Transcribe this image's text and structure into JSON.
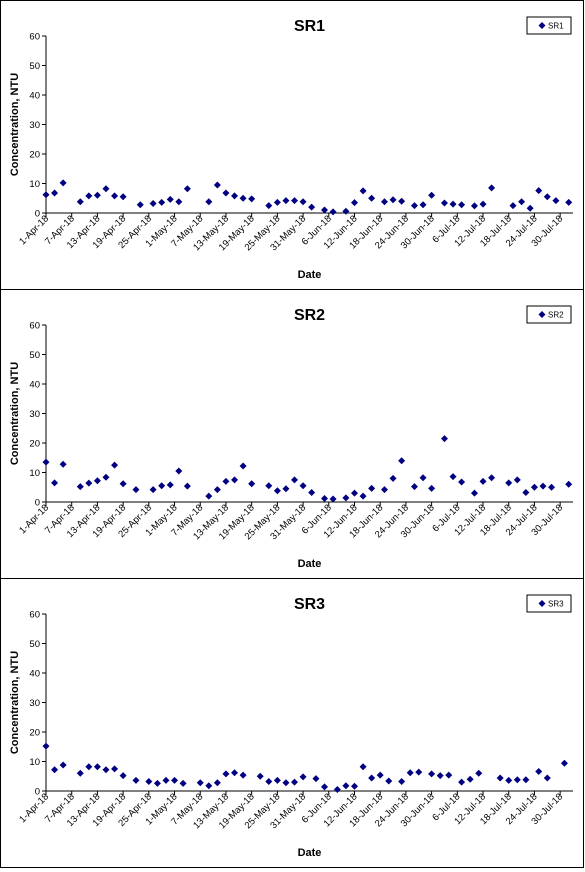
{
  "chart_data": [
    {
      "type": "scatter",
      "title": "SR1",
      "xlabel": "Date",
      "ylabel": "Concentration, NTU",
      "ylim": [
        0,
        60
      ],
      "yticks": [
        0,
        10,
        20,
        30,
        40,
        50,
        60
      ],
      "xticks": [
        "1-Apr-18",
        "7-Apr-18",
        "13-Apr-18",
        "19-Apr-18",
        "25-Apr-18",
        "1-May-18",
        "7-May-18",
        "13-May-18",
        "19-May-18",
        "25-May-18",
        "31-May-18",
        "6-Jun-18",
        "12-Jun-18",
        "18-Jun-18",
        "24-Jun-18",
        "30-Jun-18",
        "6-Jul-18",
        "12-Jul-18",
        "18-Jul-18",
        "24-Jul-18",
        "30-Jul-18"
      ],
      "grid": false,
      "legend_position": "top-right",
      "series": [
        {
          "name": "SR1",
          "color": "#000080",
          "points": [
            [
              "2018-04-01",
              6.2
            ],
            [
              "2018-04-03",
              6.8
            ],
            [
              "2018-04-05",
              10.2
            ],
            [
              "2018-04-09",
              3.8
            ],
            [
              "2018-04-11",
              5.8
            ],
            [
              "2018-04-13",
              6.0
            ],
            [
              "2018-04-15",
              8.2
            ],
            [
              "2018-04-17",
              5.8
            ],
            [
              "2018-04-19",
              5.5
            ],
            [
              "2018-04-23",
              2.8
            ],
            [
              "2018-04-26",
              3.2
            ],
            [
              "2018-04-28",
              3.6
            ],
            [
              "2018-04-30",
              4.6
            ],
            [
              "2018-05-02",
              3.8
            ],
            [
              "2018-05-04",
              8.2
            ],
            [
              "2018-05-09",
              3.8
            ],
            [
              "2018-05-11",
              9.5
            ],
            [
              "2018-05-13",
              6.8
            ],
            [
              "2018-05-15",
              5.8
            ],
            [
              "2018-05-17",
              5.0
            ],
            [
              "2018-05-19",
              4.8
            ],
            [
              "2018-05-23",
              2.5
            ],
            [
              "2018-05-25",
              3.6
            ],
            [
              "2018-05-27",
              4.2
            ],
            [
              "2018-05-29",
              4.2
            ],
            [
              "2018-05-31",
              3.8
            ],
            [
              "2018-06-02",
              2.0
            ],
            [
              "2018-06-05",
              1.0
            ],
            [
              "2018-06-07",
              0.4
            ],
            [
              "2018-06-10",
              0.6
            ],
            [
              "2018-06-12",
              3.5
            ],
            [
              "2018-06-14",
              7.5
            ],
            [
              "2018-06-16",
              5.0
            ],
            [
              "2018-06-19",
              3.8
            ],
            [
              "2018-06-21",
              4.5
            ],
            [
              "2018-06-23",
              4.0
            ],
            [
              "2018-06-26",
              2.5
            ],
            [
              "2018-06-28",
              2.8
            ],
            [
              "2018-06-30",
              6.0
            ],
            [
              "2018-07-03",
              3.4
            ],
            [
              "2018-07-05",
              3.0
            ],
            [
              "2018-07-07",
              2.8
            ],
            [
              "2018-07-10",
              2.4
            ],
            [
              "2018-07-12",
              3.0
            ],
            [
              "2018-07-14",
              8.5
            ],
            [
              "2018-07-19",
              2.5
            ],
            [
              "2018-07-21",
              3.8
            ],
            [
              "2018-07-23",
              1.6
            ],
            [
              "2018-07-25",
              7.6
            ],
            [
              "2018-07-27",
              5.5
            ],
            [
              "2018-07-29",
              4.2
            ],
            [
              "2018-08-01",
              3.6
            ]
          ]
        }
      ]
    },
    {
      "type": "scatter",
      "title": "SR2",
      "xlabel": "Date",
      "ylabel": "Concentration, NTU",
      "ylim": [
        0,
        60
      ],
      "yticks": [
        0,
        10,
        20,
        30,
        40,
        50,
        60
      ],
      "xticks": [
        "1-Apr-18",
        "7-Apr-18",
        "13-Apr-18",
        "19-Apr-18",
        "25-Apr-18",
        "1-May-18",
        "7-May-18",
        "13-May-18",
        "19-May-18",
        "25-May-18",
        "31-May-18",
        "6-Jun-18",
        "12-Jun-18",
        "18-Jun-18",
        "24-Jun-18",
        "30-Jun-18",
        "6-Jul-18",
        "12-Jul-18",
        "18-Jul-18",
        "24-Jul-18",
        "30-Jul-18"
      ],
      "grid": false,
      "legend_position": "top-right",
      "series": [
        {
          "name": "SR2",
          "color": "#000080",
          "points": [
            [
              "2018-04-01",
              13.5
            ],
            [
              "2018-04-03",
              6.5
            ],
            [
              "2018-04-05",
              12.8
            ],
            [
              "2018-04-09",
              5.2
            ],
            [
              "2018-04-11",
              6.4
            ],
            [
              "2018-04-13",
              7.2
            ],
            [
              "2018-04-15",
              8.4
            ],
            [
              "2018-04-17",
              12.5
            ],
            [
              "2018-04-19",
              6.2
            ],
            [
              "2018-04-22",
              4.2
            ],
            [
              "2018-04-26",
              4.2
            ],
            [
              "2018-04-28",
              5.5
            ],
            [
              "2018-04-30",
              5.8
            ],
            [
              "2018-05-02",
              10.5
            ],
            [
              "2018-05-04",
              5.4
            ],
            [
              "2018-05-09",
              2.0
            ],
            [
              "2018-05-11",
              4.2
            ],
            [
              "2018-05-13",
              7.0
            ],
            [
              "2018-05-15",
              7.5
            ],
            [
              "2018-05-17",
              12.2
            ],
            [
              "2018-05-19",
              6.2
            ],
            [
              "2018-05-23",
              5.5
            ],
            [
              "2018-05-25",
              3.8
            ],
            [
              "2018-05-27",
              4.5
            ],
            [
              "2018-05-29",
              7.5
            ],
            [
              "2018-05-31",
              5.5
            ],
            [
              "2018-06-02",
              3.2
            ],
            [
              "2018-06-05",
              1.2
            ],
            [
              "2018-06-07",
              1.0
            ],
            [
              "2018-06-10",
              1.4
            ],
            [
              "2018-06-12",
              3.0
            ],
            [
              "2018-06-14",
              2.0
            ],
            [
              "2018-06-16",
              4.6
            ],
            [
              "2018-06-19",
              4.2
            ],
            [
              "2018-06-21",
              8.0
            ],
            [
              "2018-06-23",
              14.0
            ],
            [
              "2018-06-26",
              5.2
            ],
            [
              "2018-06-28",
              8.2
            ],
            [
              "2018-06-30",
              4.6
            ],
            [
              "2018-07-03",
              21.5
            ],
            [
              "2018-07-05",
              8.6
            ],
            [
              "2018-07-07",
              6.8
            ],
            [
              "2018-07-10",
              3.0
            ],
            [
              "2018-07-12",
              7.0
            ],
            [
              "2018-07-14",
              8.2
            ],
            [
              "2018-07-18",
              6.5
            ],
            [
              "2018-07-20",
              7.5
            ],
            [
              "2018-07-22",
              3.2
            ],
            [
              "2018-07-24",
              5.0
            ],
            [
              "2018-07-26",
              5.4
            ],
            [
              "2018-07-28",
              5.0
            ],
            [
              "2018-08-01",
              6.0
            ]
          ]
        }
      ]
    },
    {
      "type": "scatter",
      "title": "SR3",
      "xlabel": "Date",
      "ylabel": "Concentration, NTU",
      "ylim": [
        0,
        60
      ],
      "yticks": [
        0,
        10,
        20,
        30,
        40,
        50,
        60
      ],
      "xticks": [
        "1-Apr-18",
        "7-Apr-18",
        "13-Apr-18",
        "19-Apr-18",
        "25-Apr-18",
        "1-May-18",
        "7-May-18",
        "13-May-18",
        "19-May-18",
        "25-May-18",
        "31-May-18",
        "6-Jun-18",
        "12-Jun-18",
        "18-Jun-18",
        "24-Jun-18",
        "30-Jun-18",
        "6-Jul-18",
        "12-Jul-18",
        "18-Jul-18",
        "24-Jul-18",
        "30-Jul-18"
      ],
      "grid": false,
      "legend_position": "top-right",
      "series": [
        {
          "name": "SR3",
          "color": "#000080",
          "points": [
            [
              "2018-04-01",
              15.2
            ],
            [
              "2018-04-03",
              7.2
            ],
            [
              "2018-04-05",
              8.8
            ],
            [
              "2018-04-09",
              6.0
            ],
            [
              "2018-04-11",
              8.2
            ],
            [
              "2018-04-13",
              8.2
            ],
            [
              "2018-04-15",
              7.2
            ],
            [
              "2018-04-17",
              7.5
            ],
            [
              "2018-04-19",
              5.2
            ],
            [
              "2018-04-22",
              3.6
            ],
            [
              "2018-04-25",
              3.2
            ],
            [
              "2018-04-27",
              2.6
            ],
            [
              "2018-04-29",
              3.6
            ],
            [
              "2018-05-01",
              3.6
            ],
            [
              "2018-05-03",
              2.6
            ],
            [
              "2018-05-07",
              2.8
            ],
            [
              "2018-05-09",
              1.8
            ],
            [
              "2018-05-11",
              2.8
            ],
            [
              "2018-05-13",
              5.8
            ],
            [
              "2018-05-15",
              6.2
            ],
            [
              "2018-05-17",
              5.4
            ],
            [
              "2018-05-21",
              5.0
            ],
            [
              "2018-05-23",
              3.2
            ],
            [
              "2018-05-25",
              3.6
            ],
            [
              "2018-05-27",
              2.8
            ],
            [
              "2018-05-29",
              3.0
            ],
            [
              "2018-05-31",
              4.8
            ],
            [
              "2018-06-03",
              4.2
            ],
            [
              "2018-06-05",
              1.4
            ],
            [
              "2018-06-08",
              0.5
            ],
            [
              "2018-06-10",
              1.8
            ],
            [
              "2018-06-12",
              1.6
            ],
            [
              "2018-06-14",
              8.2
            ],
            [
              "2018-06-16",
              4.4
            ],
            [
              "2018-06-18",
              5.4
            ],
            [
              "2018-06-20",
              3.4
            ],
            [
              "2018-06-23",
              3.2
            ],
            [
              "2018-06-25",
              6.2
            ],
            [
              "2018-06-27",
              6.4
            ],
            [
              "2018-06-30",
              5.8
            ],
            [
              "2018-07-02",
              5.2
            ],
            [
              "2018-07-04",
              5.4
            ],
            [
              "2018-07-07",
              3.0
            ],
            [
              "2018-07-09",
              4.0
            ],
            [
              "2018-07-11",
              6.0
            ],
            [
              "2018-07-16",
              4.4
            ],
            [
              "2018-07-18",
              3.6
            ],
            [
              "2018-07-20",
              3.8
            ],
            [
              "2018-07-22",
              3.8
            ],
            [
              "2018-07-25",
              6.6
            ],
            [
              "2018-07-27",
              4.4
            ],
            [
              "2018-07-31",
              9.4
            ]
          ]
        }
      ]
    }
  ]
}
